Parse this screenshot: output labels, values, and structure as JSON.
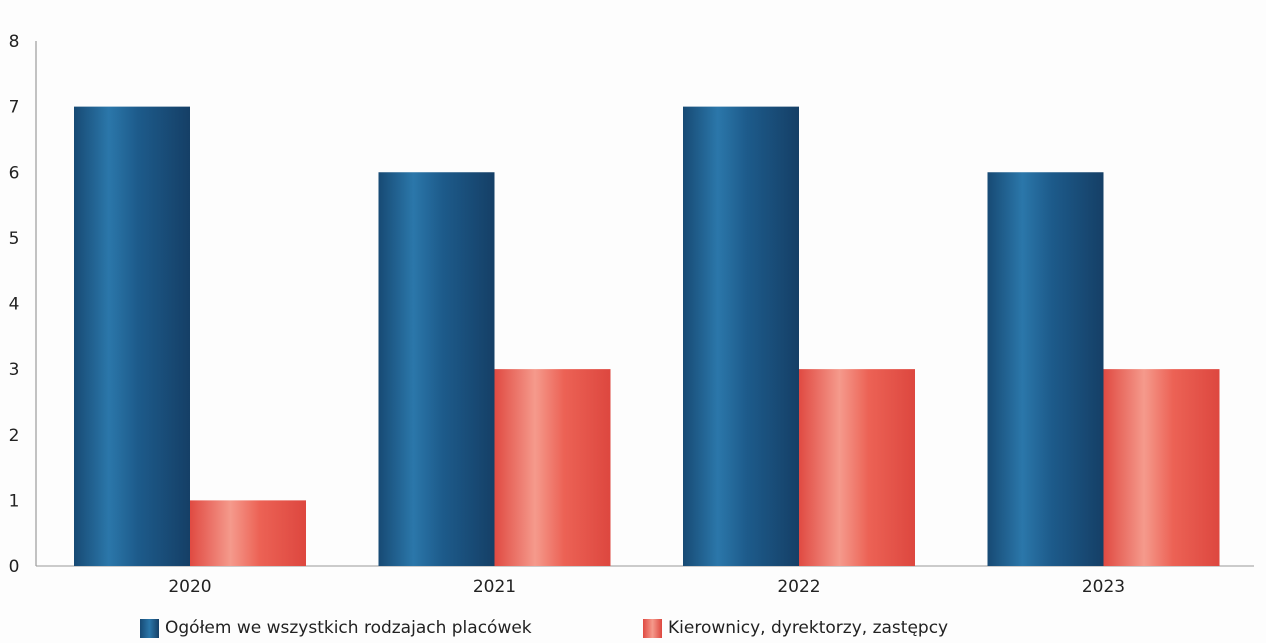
{
  "chart_data": {
    "type": "bar",
    "categories": [
      "2020",
      "2021",
      "2022",
      "2023"
    ],
    "series": [
      {
        "name": "Ogółem we wszystkich rodzajach placówek",
        "values": [
          7,
          6,
          7,
          6
        ],
        "color": "#1c5a8a"
      },
      {
        "name": "Kierownicy, dyrektorzy, zastępcy",
        "values": [
          1,
          3,
          3,
          3
        ],
        "color": "#e8584e"
      }
    ],
    "ylim": [
      0,
      8
    ],
    "yticks": [
      "0",
      "1",
      "2",
      "3",
      "4",
      "5",
      "6",
      "7",
      "8"
    ],
    "grid": false,
    "legend_position": "bottom",
    "title": "",
    "xlabel": "",
    "ylabel": ""
  }
}
